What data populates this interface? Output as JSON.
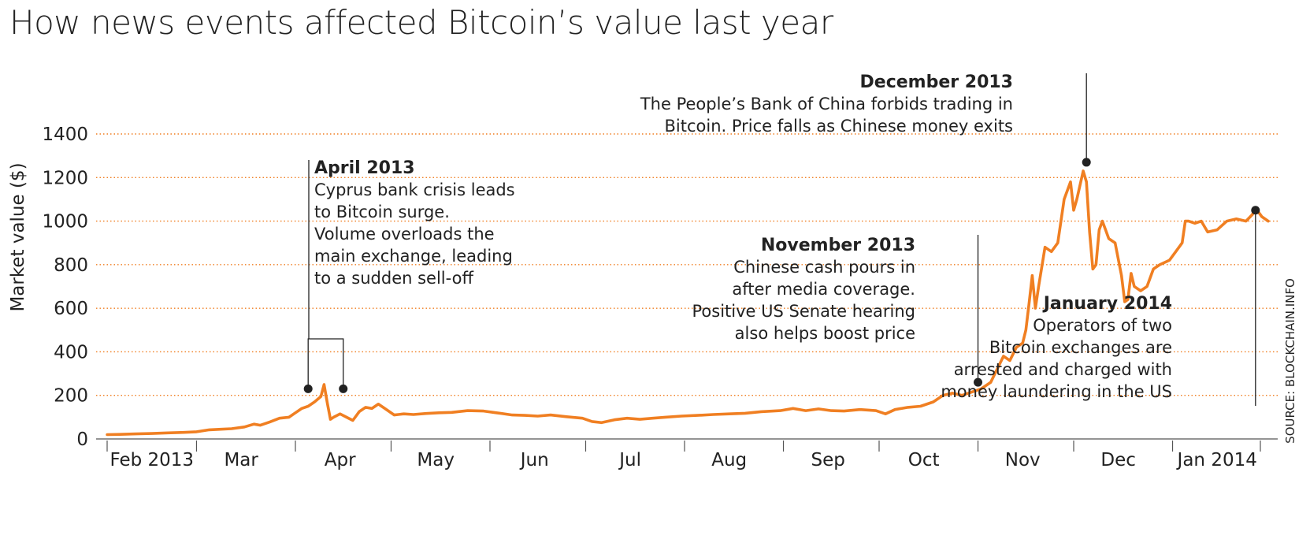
{
  "chart_data": {
    "type": "line",
    "title": "How news events affected Bitcoin’s value last year",
    "ylabel": "Market value ($)",
    "xlabel": "",
    "source": "SOURCE: BLOCKCHAIN.INFO",
    "ylim": [
      0,
      1400
    ],
    "yticks": [
      0,
      200,
      400,
      600,
      800,
      1000,
      1200,
      1400
    ],
    "xlim": [
      "2013-01-30",
      "2014-01-31"
    ],
    "grid": "horizontal-dotted",
    "line_color": "#f07f22",
    "x_tick_labels": [
      {
        "label": "Feb 2013",
        "date": "2013-02-15"
      },
      {
        "label": "Mar",
        "date": "2013-03-15"
      },
      {
        "label": "Apr",
        "date": "2013-04-15"
      },
      {
        "label": "May",
        "date": "2013-05-15"
      },
      {
        "label": "Jun",
        "date": "2013-06-15"
      },
      {
        "label": "Jul",
        "date": "2013-07-15"
      },
      {
        "label": "Aug",
        "date": "2013-08-15"
      },
      {
        "label": "Sep",
        "date": "2013-09-15"
      },
      {
        "label": "Oct",
        "date": "2013-10-15"
      },
      {
        "label": "Nov",
        "date": "2013-11-15"
      },
      {
        "label": "Dec",
        "date": "2013-12-15"
      },
      {
        "label": "Jan 2014",
        "date": "2014-01-15"
      }
    ],
    "x_ticks": [
      "2013-03-01",
      "2013-04-01",
      "2013-05-01",
      "2013-06-01",
      "2013-07-01",
      "2013-08-01",
      "2013-09-01",
      "2013-10-01",
      "2013-11-01",
      "2013-12-01",
      "2014-01-01"
    ],
    "series": [
      {
        "points": [
          [
            "2013-02-01",
            20
          ],
          [
            "2013-02-05",
            21
          ],
          [
            "2013-02-10",
            23
          ],
          [
            "2013-02-15",
            25
          ],
          [
            "2013-02-20",
            28
          ],
          [
            "2013-02-25",
            30
          ],
          [
            "2013-03-01",
            33
          ],
          [
            "2013-03-05",
            42
          ],
          [
            "2013-03-08",
            44
          ],
          [
            "2013-03-12",
            47
          ],
          [
            "2013-03-16",
            55
          ],
          [
            "2013-03-19",
            68
          ],
          [
            "2013-03-21",
            63
          ],
          [
            "2013-03-24",
            78
          ],
          [
            "2013-03-27",
            95
          ],
          [
            "2013-03-30",
            100
          ],
          [
            "2013-04-01",
            120
          ],
          [
            "2013-04-03",
            140
          ],
          [
            "2013-04-05",
            150
          ],
          [
            "2013-04-07",
            170
          ],
          [
            "2013-04-09",
            195
          ],
          [
            "2013-04-10",
            250
          ],
          [
            "2013-04-11",
            165
          ],
          [
            "2013-04-12",
            90
          ],
          [
            "2013-04-13",
            100
          ],
          [
            "2013-04-15",
            115
          ],
          [
            "2013-04-17",
            100
          ],
          [
            "2013-04-19",
            85
          ],
          [
            "2013-04-21",
            125
          ],
          [
            "2013-04-23",
            145
          ],
          [
            "2013-04-25",
            140
          ],
          [
            "2013-04-27",
            160
          ],
          [
            "2013-04-29",
            140
          ],
          [
            "2013-05-02",
            110
          ],
          [
            "2013-05-05",
            115
          ],
          [
            "2013-05-08",
            112
          ],
          [
            "2013-05-12",
            117
          ],
          [
            "2013-05-16",
            120
          ],
          [
            "2013-05-20",
            122
          ],
          [
            "2013-05-25",
            130
          ],
          [
            "2013-05-30",
            128
          ],
          [
            "2013-06-03",
            120
          ],
          [
            "2013-06-08",
            110
          ],
          [
            "2013-06-12",
            108
          ],
          [
            "2013-06-16",
            105
          ],
          [
            "2013-06-20",
            110
          ],
          [
            "2013-06-25",
            102
          ],
          [
            "2013-06-30",
            95
          ],
          [
            "2013-07-03",
            80
          ],
          [
            "2013-07-06",
            75
          ],
          [
            "2013-07-10",
            88
          ],
          [
            "2013-07-14",
            95
          ],
          [
            "2013-07-18",
            90
          ],
          [
            "2013-07-22",
            95
          ],
          [
            "2013-07-26",
            100
          ],
          [
            "2013-07-31",
            105
          ],
          [
            "2013-08-05",
            108
          ],
          [
            "2013-08-10",
            112
          ],
          [
            "2013-08-15",
            115
          ],
          [
            "2013-08-20",
            118
          ],
          [
            "2013-08-25",
            125
          ],
          [
            "2013-08-31",
            130
          ],
          [
            "2013-09-04",
            140
          ],
          [
            "2013-09-08",
            130
          ],
          [
            "2013-09-12",
            138
          ],
          [
            "2013-09-16",
            130
          ],
          [
            "2013-09-20",
            128
          ],
          [
            "2013-09-25",
            135
          ],
          [
            "2013-09-30",
            130
          ],
          [
            "2013-10-03",
            115
          ],
          [
            "2013-10-06",
            135
          ],
          [
            "2013-10-10",
            145
          ],
          [
            "2013-10-14",
            150
          ],
          [
            "2013-10-18",
            170
          ],
          [
            "2013-10-21",
            200
          ],
          [
            "2013-10-24",
            210
          ],
          [
            "2013-10-27",
            200
          ],
          [
            "2013-10-30",
            215
          ],
          [
            "2013-11-02",
            230
          ],
          [
            "2013-11-05",
            260
          ],
          [
            "2013-11-07",
            320
          ],
          [
            "2013-11-09",
            380
          ],
          [
            "2013-11-11",
            360
          ],
          [
            "2013-11-13",
            420
          ],
          [
            "2013-11-15",
            440
          ],
          [
            "2013-11-16",
            500
          ],
          [
            "2013-11-17",
            620
          ],
          [
            "2013-11-18",
            750
          ],
          [
            "2013-11-19",
            600
          ],
          [
            "2013-11-20",
            700
          ],
          [
            "2013-11-22",
            880
          ],
          [
            "2013-11-24",
            860
          ],
          [
            "2013-11-26",
            900
          ],
          [
            "2013-11-28",
            1100
          ],
          [
            "2013-11-30",
            1180
          ],
          [
            "2013-12-01",
            1050
          ],
          [
            "2013-12-02",
            1100
          ],
          [
            "2013-12-04",
            1230
          ],
          [
            "2013-12-05",
            1180
          ],
          [
            "2013-12-06",
            950
          ],
          [
            "2013-12-07",
            780
          ],
          [
            "2013-12-08",
            800
          ],
          [
            "2013-12-09",
            960
          ],
          [
            "2013-12-10",
            1000
          ],
          [
            "2013-12-11",
            960
          ],
          [
            "2013-12-12",
            920
          ],
          [
            "2013-12-14",
            900
          ],
          [
            "2013-12-16",
            750
          ],
          [
            "2013-12-17",
            630
          ],
          [
            "2013-12-18",
            640
          ],
          [
            "2013-12-19",
            760
          ],
          [
            "2013-12-20",
            700
          ],
          [
            "2013-12-22",
            680
          ],
          [
            "2013-12-24",
            700
          ],
          [
            "2013-12-26",
            780
          ],
          [
            "2013-12-28",
            800
          ],
          [
            "2013-12-31",
            820
          ],
          [
            "2014-01-02",
            860
          ],
          [
            "2014-01-04",
            900
          ],
          [
            "2014-01-05",
            1000
          ],
          [
            "2014-01-06",
            1000
          ],
          [
            "2014-01-08",
            990
          ],
          [
            "2014-01-10",
            1000
          ],
          [
            "2014-01-12",
            950
          ],
          [
            "2014-01-15",
            960
          ],
          [
            "2014-01-18",
            1000
          ],
          [
            "2014-01-21",
            1010
          ],
          [
            "2014-01-24",
            1000
          ],
          [
            "2014-01-26",
            1030
          ],
          [
            "2014-01-27",
            1060
          ],
          [
            "2014-01-29",
            1020
          ],
          [
            "2014-01-31",
            1000
          ]
        ]
      }
    ],
    "annotations": [
      {
        "heading": "April 2013",
        "lines": [
          "Cyprus bank crisis leads",
          "to Bitcoin surge.",
          "Volume overloads the",
          "main exchange, leading",
          "to a sudden sell-off"
        ],
        "align": "left",
        "markers": [
          [
            "2013-04-05",
            230
          ],
          [
            "2013-04-16",
            230
          ]
        ]
      },
      {
        "heading": "November 2013",
        "lines": [
          "Chinese cash pours in",
          "after media coverage.",
          "Positive US Senate hearing",
          "also helps boost price"
        ],
        "align": "right",
        "markers": [
          [
            "2013-11-01",
            260
          ]
        ]
      },
      {
        "heading": "December 2013",
        "lines": [
          "The People’s Bank of China forbids trading in",
          "Bitcoin. Price falls as Chinese money exits"
        ],
        "align": "right",
        "markers": [
          [
            "2013-12-05",
            1270
          ]
        ]
      },
      {
        "heading": "January 2014",
        "lines": [
          "Operators of two",
          "Bitcoin exchanges are",
          "arrested and charged with",
          "money laundering in the US"
        ],
        "align": "right",
        "markers": [
          [
            "2014-01-27",
            1050
          ]
        ]
      }
    ]
  }
}
